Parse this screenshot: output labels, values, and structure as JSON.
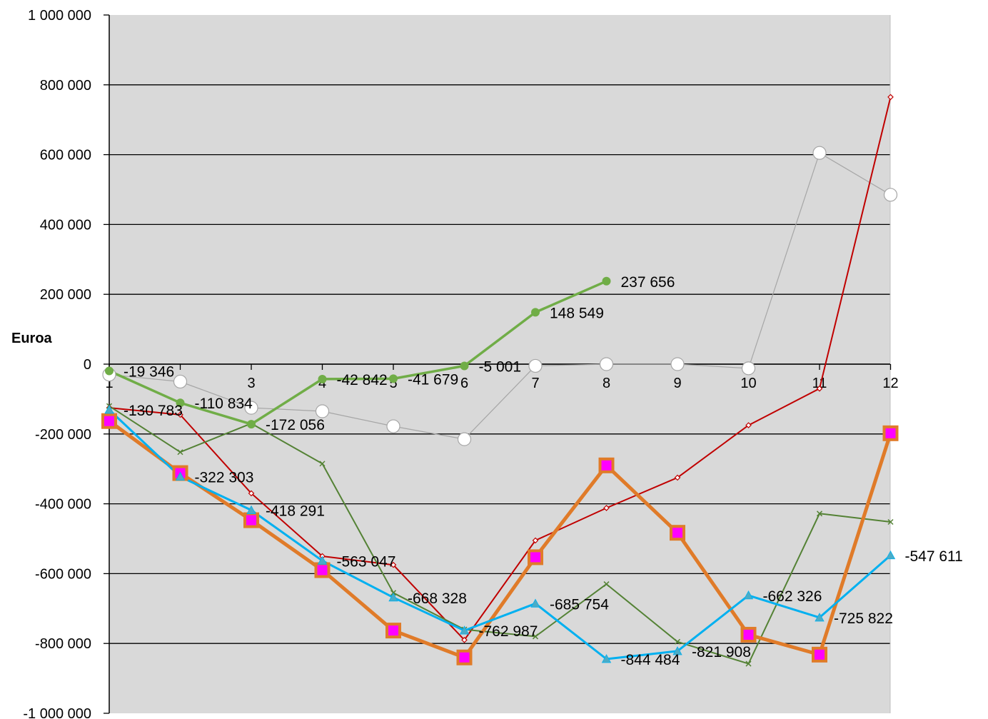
{
  "chart_data": {
    "type": "line",
    "title": "",
    "xlabel": "",
    "ylabel": "Euroa",
    "x": [
      "1",
      "2",
      "3",
      "4",
      "5",
      "6",
      "7",
      "8",
      "9",
      "10",
      "11",
      "12"
    ],
    "ylim": [
      -1000000,
      1000000
    ],
    "yticks": [
      {
        "value": 1000000,
        "label": "1 000 000"
      },
      {
        "value": 800000,
        "label": "800 000"
      },
      {
        "value": 600000,
        "label": "600 000"
      },
      {
        "value": 400000,
        "label": "400 000"
      },
      {
        "value": 200000,
        "label": "200 000"
      },
      {
        "value": 0,
        "label": "0"
      },
      {
        "value": -200000,
        "label": "-200 000"
      },
      {
        "value": -400000,
        "label": "-400 000"
      },
      {
        "value": -600000,
        "label": "-600 000"
      },
      {
        "value": -800000,
        "label": "-800 000"
      },
      {
        "value": -1000000,
        "label": "-1 000 000"
      }
    ],
    "grid": true,
    "plot_background": "#d9d9d9",
    "series": [
      {
        "color": "#a6a6a6",
        "marker": "circle-open",
        "values": [
          -30000,
          -50000,
          -125000,
          -135000,
          -178000,
          -215000,
          -5000,
          0,
          0,
          -12000,
          605000,
          485000
        ],
        "labels": []
      },
      {
        "color": "#c00000",
        "marker": "diamond-small",
        "values": [
          -125000,
          -145000,
          -370000,
          -550000,
          -575000,
          -790000,
          -505000,
          -412000,
          -325000,
          -175000,
          -70000,
          765000
        ],
        "labels": []
      },
      {
        "color": "#548235",
        "marker": "x",
        "values": [
          -120000,
          -252000,
          -170000,
          -285000,
          -655000,
          -760000,
          -780000,
          -630000,
          -795000,
          -858000,
          -428000,
          -452000
        ],
        "labels": []
      },
      {
        "color": "#e07b29",
        "marker": "square-magenta",
        "values": [
          -163000,
          -312000,
          -447000,
          -590000,
          -763000,
          -840000,
          -553000,
          -290000,
          -483000,
          -775000,
          -832000,
          -198000
        ],
        "labels": []
      },
      {
        "color": "#00b0f0",
        "marker": "triangle",
        "values": [
          -130783,
          -322303,
          -418291,
          -563047,
          -668328,
          -762987,
          -685754,
          -844484,
          -821908,
          -662326,
          -725822,
          -547611
        ],
        "labels": [
          "-130 783",
          "-322 303",
          "-418 291",
          "-563 047",
          "-668 328",
          "-762 987",
          "-685 754",
          "-844 484",
          "-821 908",
          "-662 326",
          "-725 822",
          "-547 611"
        ]
      },
      {
        "color": "#70ad47",
        "marker": "dot",
        "values": [
          -19346,
          -110834,
          -172056,
          -42842,
          -41679,
          -5001,
          148549,
          237656,
          null,
          null,
          null,
          null
        ],
        "labels": [
          "-19 346",
          "-110 834",
          "-172 056",
          "-42 842",
          "-41 679",
          "-5 001",
          "148 549",
          "237 656",
          null,
          null,
          null,
          null
        ]
      }
    ]
  }
}
